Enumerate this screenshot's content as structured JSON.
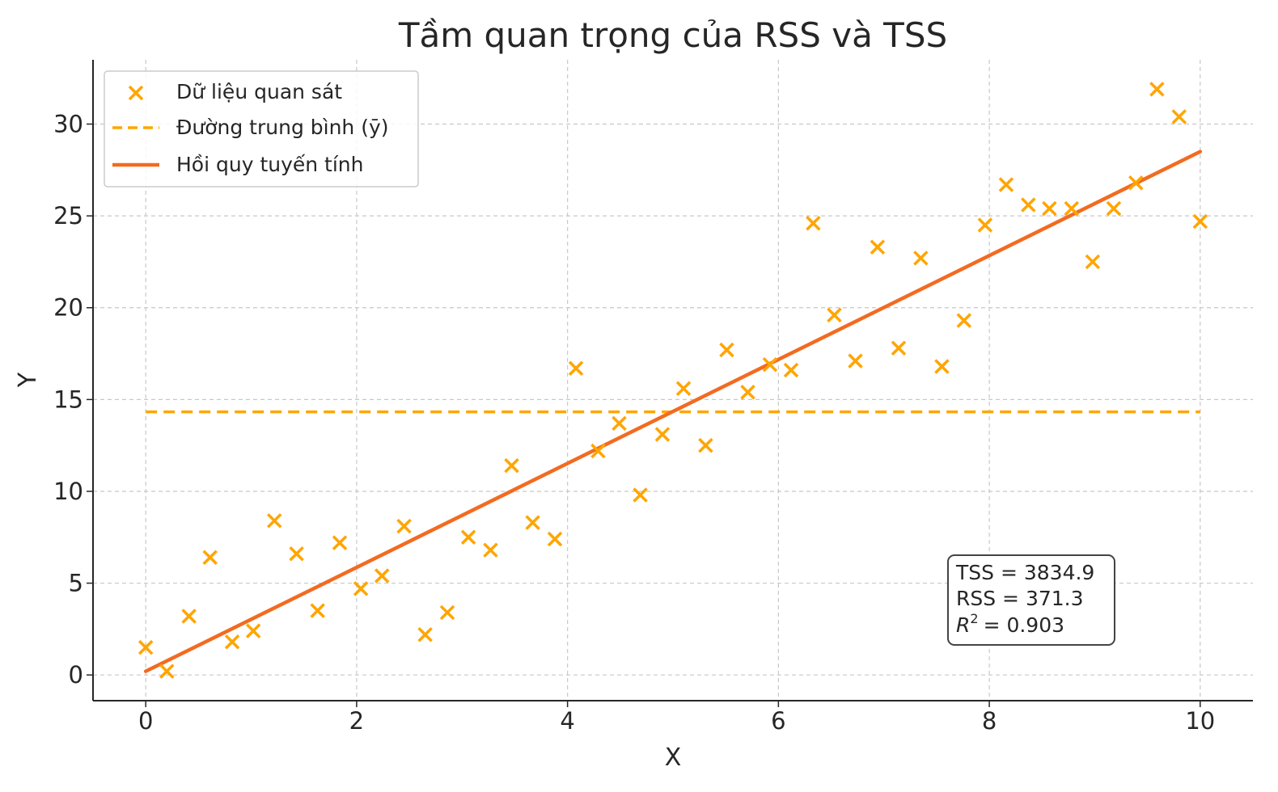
{
  "chart_data": {
    "type": "scatter",
    "title": "Tầm quan trọng của RSS và TSS",
    "xlabel": "X",
    "ylabel": "Y",
    "xlim": [
      -0.5,
      10.5
    ],
    "ylim": [
      -1.4,
      33.5
    ],
    "xticks": [
      0,
      2,
      4,
      6,
      8,
      10
    ],
    "yticks": [
      0,
      5,
      10,
      15,
      20,
      25,
      30
    ],
    "grid": true,
    "legend_position": "top-left",
    "series": [
      {
        "name": "Dữ liệu quan sát",
        "kind": "scatter",
        "marker": "x",
        "color": "#FFA500",
        "x": [
          0.0,
          0.2,
          0.41,
          0.61,
          0.82,
          1.02,
          1.22,
          1.43,
          1.63,
          1.84,
          2.04,
          2.24,
          2.45,
          2.65,
          2.86,
          3.06,
          3.27,
          3.47,
          3.67,
          3.88,
          4.08,
          4.29,
          4.49,
          4.69,
          4.9,
          5.1,
          5.31,
          5.51,
          5.71,
          5.92,
          6.12,
          6.33,
          6.53,
          6.73,
          6.94,
          7.14,
          7.35,
          7.55,
          7.76,
          7.96,
          8.16,
          8.37,
          8.57,
          8.78,
          8.98,
          9.18,
          9.39,
          9.59,
          9.8,
          10.0
        ],
        "y": [
          1.5,
          0.2,
          3.2,
          6.4,
          1.8,
          2.4,
          8.4,
          6.6,
          3.5,
          7.2,
          4.7,
          5.4,
          8.1,
          2.2,
          3.4,
          7.5,
          6.8,
          11.4,
          8.3,
          7.4,
          16.7,
          12.2,
          13.7,
          9.8,
          13.1,
          15.6,
          12.5,
          17.7,
          15.4,
          16.9,
          16.6,
          24.6,
          19.6,
          17.1,
          23.3,
          17.8,
          22.7,
          16.8,
          19.3,
          24.5,
          26.7,
          25.6,
          25.4,
          25.4,
          22.5,
          25.4,
          26.8,
          31.9,
          30.4,
          24.7
        ]
      },
      {
        "name": "Đường trung bình (ȳ)",
        "kind": "hline",
        "style": "dashed",
        "color": "#FFA500",
        "y": 14.33,
        "x": [
          0,
          10
        ]
      },
      {
        "name": "Hồi quy tuyến tính",
        "kind": "line",
        "color": "#F26B21",
        "x": [
          0,
          10
        ],
        "y": [
          0.2,
          28.5
        ]
      }
    ],
    "annotations": [
      {
        "name": "tss",
        "label": "TSS = 3834.9"
      },
      {
        "name": "rss",
        "label": "RSS = 371.3"
      },
      {
        "name": "r2",
        "value": "= 0.903"
      }
    ]
  }
}
